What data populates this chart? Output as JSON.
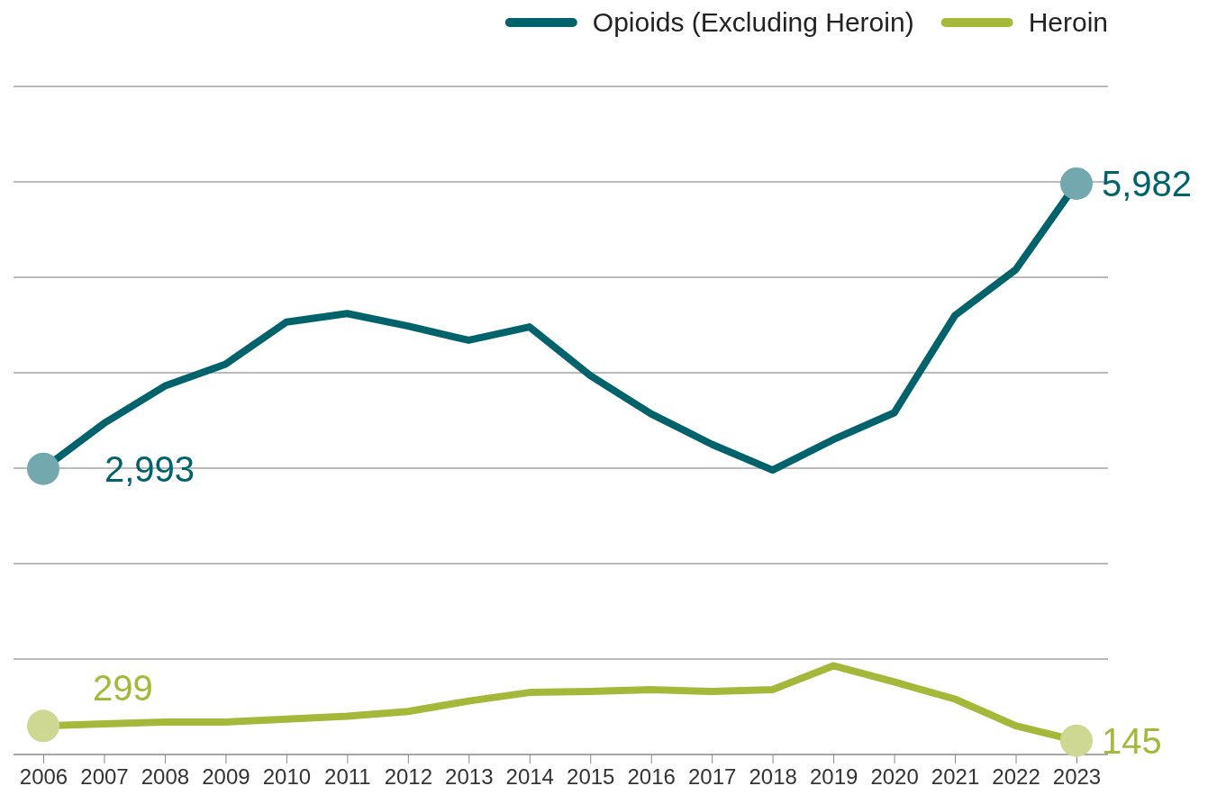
{
  "chart_data": {
    "type": "line",
    "categories": [
      "2006",
      "2007",
      "2008",
      "2009",
      "2010",
      "2011",
      "2012",
      "2013",
      "2014",
      "2015",
      "2016",
      "2017",
      "2018",
      "2019",
      "2020",
      "2021",
      "2022",
      "2023"
    ],
    "series": [
      {
        "name": "Opioids (Excluding Heroin)",
        "color": "#00626b",
        "values": [
          2993,
          3470,
          3860,
          4090,
          4530,
          4620,
          4490,
          4340,
          4480,
          3970,
          3570,
          3250,
          2980,
          3300,
          3580,
          4600,
          5080,
          5982
        ],
        "value_labels": [
          "2,993",
          null,
          null,
          null,
          null,
          null,
          null,
          null,
          null,
          null,
          null,
          null,
          null,
          null,
          null,
          null,
          null,
          "5,982"
        ]
      },
      {
        "name": "Heroin",
        "color": "#a6b83a",
        "values": [
          299,
          320,
          340,
          340,
          370,
          400,
          450,
          560,
          650,
          660,
          680,
          660,
          680,
          930,
          760,
          580,
          300,
          145
        ],
        "value_labels": [
          "299",
          null,
          null,
          null,
          null,
          null,
          null,
          null,
          null,
          null,
          null,
          null,
          null,
          null,
          null,
          null,
          null,
          "145"
        ]
      }
    ],
    "ylim": [
      0,
      7000
    ],
    "yticks": [
      {
        "value": 0,
        "label": null
      },
      {
        "value": 1000,
        "label": null
      },
      {
        "value": 2000,
        "label": null
      },
      {
        "value": 3000,
        "label": null
      },
      {
        "value": 4000,
        "label": null
      },
      {
        "value": 5000,
        "label": null
      },
      {
        "value": 6000,
        "label": null
      },
      {
        "value": 7000,
        "label": null
      }
    ],
    "tick_labels": "x",
    "grid": "y",
    "legend": "top right",
    "marker": "none",
    "line_style": "solid"
  }
}
